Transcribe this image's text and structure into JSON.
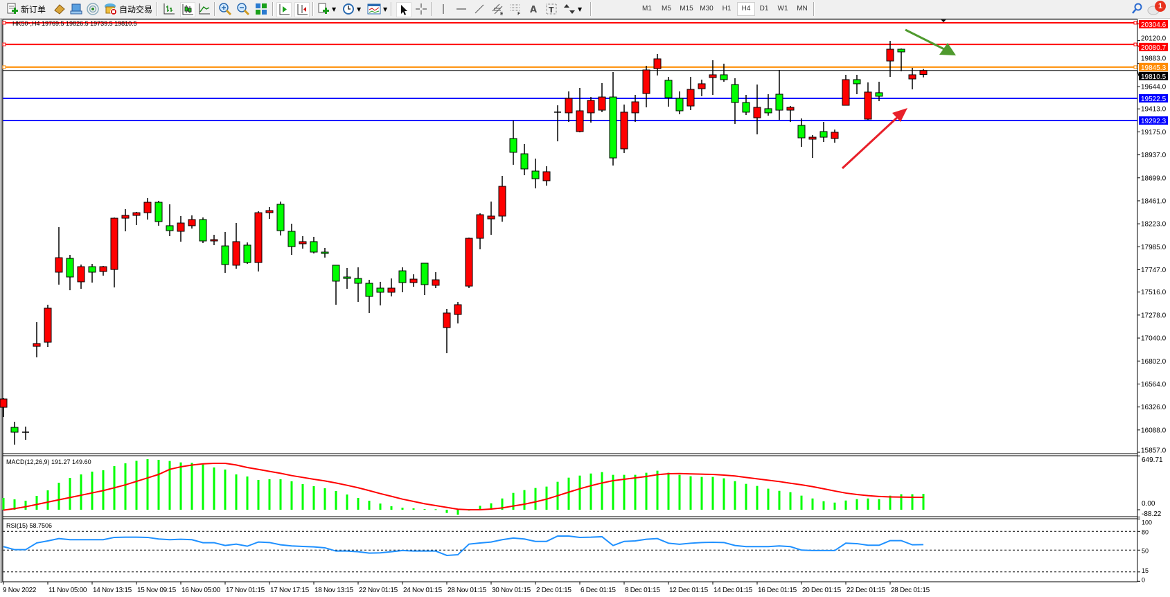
{
  "toolbar": {
    "new_order_label": "新订单",
    "auto_trading_label": "自动交易",
    "timeframes": [
      "M1",
      "M5",
      "M15",
      "M30",
      "H1",
      "H4",
      "D1",
      "W1",
      "MN"
    ],
    "active_timeframe": "H4",
    "notification_count": "1",
    "icons": [
      "new-order-icon",
      "market-watch-icon",
      "data-window-icon",
      "navigator-icon",
      "auto-trading-icon",
      "bar-chart-icon",
      "candlestick-icon",
      "line-chart-icon",
      "zoom-in-icon",
      "zoom-out-icon",
      "tile-windows-icon",
      "auto-scroll-icon",
      "chart-shift-icon",
      "indicators-icon",
      "periods-icon",
      "templates-icon",
      "cursor-icon",
      "crosshair-icon",
      "vertical-line-icon",
      "horizontal-line-icon",
      "trendline-icon",
      "equidistant-channel-icon",
      "fibonacci-icon",
      "text-icon",
      "text-label-icon",
      "arrows-icon",
      "search-icon",
      "notifications-icon"
    ]
  },
  "chart": {
    "symbol_info": "HK50-,H4  19769.5 19826.5 19739.5 19810.5",
    "up_color": "#ff0000",
    "down_color": "#00ff00",
    "current_price": "19810.5",
    "price_ticks": [
      "20120.0",
      "19883.0",
      "19644.0",
      "19413.0",
      "19175.0",
      "18937.0",
      "18699.0",
      "18461.0",
      "18223.0",
      "17985.0",
      "17747.0",
      "17516.0",
      "17278.0",
      "17040.0",
      "16802.0",
      "16564.0",
      "16326.0",
      "16088.0",
      "15857.0"
    ],
    "levels": [
      {
        "price": "20304.6",
        "color": "#ff0000"
      },
      {
        "price": "20080.7",
        "color": "#ff0000"
      },
      {
        "price": "19845.3",
        "color": "#ff8c00"
      },
      {
        "price": "19522.5",
        "color": "#0000ff"
      },
      {
        "price": "19292.3",
        "color": "#0000ff"
      }
    ],
    "annotations": [
      {
        "type": "arrow",
        "color": "#4f9a2e",
        "direction": "down-right"
      },
      {
        "type": "arrow",
        "color": "#e8202a",
        "direction": "up-right"
      }
    ],
    "time_labels": [
      "9 Nov 2022",
      "11 Nov 05:00",
      "14 Nov 13:15",
      "15 Nov 09:15",
      "16 Nov 05:00",
      "17 Nov 01:15",
      "17 Nov 17:15",
      "18 Nov 13:15",
      "22 Nov 01:15",
      "24 Nov 01:15",
      "28 Nov 01:15",
      "30 Nov 01:15",
      "2 Dec 01:15",
      "6 Dec 01:15",
      "8 Dec 01:15",
      "12 Dec 01:15",
      "14 Dec 01:15",
      "16 Dec 01:15",
      "20 Dec 01:15",
      "22 Dec 01:15",
      "28 Dec 01:15"
    ],
    "macd": {
      "label": "MACD(12,26,9) 191.27 149.60",
      "max_label": "649.71",
      "zero_label": "0.00",
      "min_label": "-88.22",
      "hist_color": "#00ff00",
      "signal_color": "#ff0000"
    },
    "rsi": {
      "label": "RSI(15) 58.7506",
      "levels": [
        "100",
        "80",
        "50",
        "15",
        "0"
      ],
      "color": "#1e90ff"
    }
  },
  "chart_data": {
    "type": "candlestick",
    "symbol": "HK50-",
    "timeframe": "H4",
    "ylim": [
      15843,
      20340
    ],
    "ohlc": [
      [
        16323,
        16417,
        16223,
        16409
      ],
      [
        16115,
        16173,
        15936,
        16065
      ],
      [
        16065,
        16123,
        15986,
        16068
      ],
      [
        16954,
        17205,
        16840,
        16983
      ],
      [
        16997,
        17385,
        16947,
        17349
      ],
      [
        17722,
        18188,
        17593,
        17872
      ],
      [
        17865,
        17901,
        17535,
        17672
      ],
      [
        17622,
        17801,
        17550,
        17779
      ],
      [
        17779,
        17808,
        17614,
        17722
      ],
      [
        17729,
        17786,
        17686,
        17779
      ],
      [
        17750,
        18288,
        17564,
        18281
      ],
      [
        18281,
        18375,
        18145,
        18310
      ],
      [
        18310,
        18346,
        18210,
        18338
      ],
      [
        18338,
        18489,
        18267,
        18446
      ],
      [
        18446,
        18461,
        18203,
        18246
      ],
      [
        18203,
        18425,
        18095,
        18152
      ],
      [
        18145,
        18303,
        18038,
        18231
      ],
      [
        18203,
        18310,
        18174,
        18267
      ],
      [
        18267,
        18289,
        18023,
        18045
      ],
      [
        18045,
        18109,
        18002,
        18059
      ],
      [
        17994,
        18138,
        17715,
        17801
      ],
      [
        17794,
        18231,
        17758,
        18038
      ],
      [
        18002,
        18030,
        17808,
        17822
      ],
      [
        17822,
        18353,
        17729,
        18338
      ],
      [
        18338,
        18396,
        18274,
        18360
      ],
      [
        18425,
        18453,
        18102,
        18152
      ],
      [
        18145,
        18224,
        17901,
        17987
      ],
      [
        18016,
        18095,
        17966,
        18038
      ],
      [
        18038,
        18088,
        17916,
        17930
      ],
      [
        17930,
        17973,
        17873,
        17916
      ],
      [
        17794,
        17794,
        17385,
        17629
      ],
      [
        17672,
        17765,
        17550,
        17657
      ],
      [
        17657,
        17772,
        17414,
        17607
      ],
      [
        17607,
        17643,
        17299,
        17471
      ],
      [
        17557,
        17622,
        17378,
        17514
      ],
      [
        17514,
        17657,
        17471,
        17557
      ],
      [
        17736,
        17772,
        17514,
        17614
      ],
      [
        17614,
        17700,
        17571,
        17650
      ],
      [
        17815,
        17815,
        17485,
        17593
      ],
      [
        17586,
        17722,
        17557,
        17643
      ],
      [
        17148,
        17342,
        16883,
        17299
      ],
      [
        17284,
        17413,
        17191,
        17385
      ],
      [
        17578,
        18080,
        17557,
        18073
      ],
      [
        18073,
        18332,
        17959,
        18317
      ],
      [
        18274,
        18453,
        18109,
        18303
      ],
      [
        18303,
        18719,
        18245,
        18611
      ],
      [
        19106,
        19293,
        18834,
        18963
      ],
      [
        18948,
        19049,
        18726,
        18791
      ],
      [
        18769,
        18898,
        18590,
        18690
      ],
      [
        18669,
        18819,
        18618,
        18762
      ],
      [
        19379,
        19450,
        19077,
        19386
      ],
      [
        19372,
        19594,
        19278,
        19522
      ],
      [
        19178,
        19630,
        19170,
        19393
      ],
      [
        19372,
        19536,
        19271,
        19501
      ],
      [
        19400,
        19680,
        19379,
        19536
      ],
      [
        19536,
        19795,
        18826,
        18905
      ],
      [
        18999,
        19458,
        18956,
        19379
      ],
      [
        19372,
        19558,
        19278,
        19486
      ],
      [
        19572,
        19859,
        19429,
        19816
      ],
      [
        19830,
        19981,
        19759,
        19931
      ],
      [
        19709,
        19744,
        19436,
        19529
      ],
      [
        19522,
        19594,
        19357,
        19393
      ],
      [
        19443,
        19744,
        19400,
        19615
      ],
      [
        19622,
        19716,
        19544,
        19673
      ],
      [
        19737,
        19917,
        19558,
        19766
      ],
      [
        19766,
        19881,
        19694,
        19716
      ],
      [
        19665,
        19730,
        19257,
        19479
      ],
      [
        19479,
        19558,
        19350,
        19379
      ],
      [
        19321,
        19665,
        19149,
        19429
      ],
      [
        19415,
        19565,
        19343,
        19372
      ],
      [
        19565,
        19816,
        19300,
        19400
      ],
      [
        19400,
        19443,
        19278,
        19429
      ],
      [
        19242,
        19314,
        19020,
        19113
      ],
      [
        19099,
        19142,
        18905,
        19120
      ],
      [
        19178,
        19278,
        19070,
        19120
      ],
      [
        19106,
        19199,
        19063,
        19171
      ],
      [
        19450,
        19766,
        19450,
        19716
      ],
      [
        19716,
        19766,
        19565,
        19673
      ],
      [
        19307,
        19687,
        19300,
        19587
      ],
      [
        19580,
        19694,
        19493,
        19544
      ],
      [
        19909,
        20117,
        19744,
        20031
      ],
      [
        20031,
        20038,
        19802,
        20003
      ],
      [
        19723,
        19838,
        19615,
        19766
      ],
      [
        19769.5,
        19826.5,
        19739.5,
        19810.5
      ]
    ],
    "macd": {
      "ylim": [
        -88.22,
        649.71
      ],
      "main": [
        142,
        125,
        109,
        167,
        234,
        326,
        384,
        426,
        460,
        476,
        526,
        560,
        590,
        610,
        602,
        588,
        571,
        566,
        546,
        510,
        485,
        426,
        401,
        359,
        368,
        368,
        343,
        309,
        284,
        259,
        226,
        184,
        142,
        109,
        75,
        42,
        25,
        17,
        8,
        6,
        -39,
        -61,
        -11,
        48,
        78,
        136,
        203,
        237,
        262,
        279,
        337,
        387,
        412,
        437,
        454,
        421,
        421,
        421,
        446,
        471,
        446,
        421,
        404,
        396,
        396,
        379,
        345,
        312,
        287,
        254,
        228,
        212,
        170,
        136,
        103,
        86,
        111,
        128,
        136,
        128,
        170,
        187,
        187,
        191.27
      ],
      "signal": [
        -5,
        14,
        36,
        64,
        92,
        120,
        147,
        175,
        203,
        231,
        265,
        300,
        342,
        384,
        426,
        487,
        518,
        539,
        554,
        560,
        560,
        540,
        510,
        487,
        463,
        440,
        412,
        390,
        368,
        348,
        323,
        295,
        265,
        231,
        195,
        162,
        128,
        100,
        72,
        50,
        28,
        6,
        0,
        0,
        8,
        22,
        45,
        67,
        95,
        128,
        170,
        212,
        253,
        290,
        323,
        351,
        368,
        384,
        401,
        423,
        434,
        437,
        432,
        429,
        426,
        418,
        407,
        390,
        373,
        356,
        340,
        320,
        301,
        279,
        253,
        226,
        201,
        184,
        170,
        160,
        155,
        152,
        150,
        149.6
      ]
    },
    "rsi": {
      "ylim": [
        0,
        100
      ],
      "values": [
        55.6,
        50.7,
        50.7,
        61.5,
        64.8,
        68.5,
        66.7,
        66.7,
        66.7,
        66.7,
        70.4,
        70.7,
        70.7,
        70.4,
        67.8,
        66.7,
        67.4,
        66.7,
        61.9,
        61.9,
        57.4,
        59.6,
        56.3,
        63,
        62.2,
        58.5,
        56.7,
        55.9,
        55.2,
        53.7,
        48.5,
        48.5,
        47.4,
        45.2,
        45.6,
        47.4,
        49.3,
        48.5,
        48.5,
        48.5,
        41.5,
        42.6,
        59.6,
        61.5,
        63,
        66.7,
        69.3,
        67.8,
        64,
        64,
        72.6,
        72.6,
        70.4,
        70.7,
        71.5,
        57.4,
        64,
        64.8,
        67.4,
        68.5,
        61.1,
        59.3,
        61.1,
        62.2,
        62.6,
        62.2,
        57.4,
        55.6,
        55.6,
        55.6,
        56.7,
        55.6,
        50,
        49.3,
        49.3,
        49.3,
        61.1,
        60.4,
        57.8,
        57.8,
        65.2,
        65.2,
        58.5,
        58.7506
      ]
    }
  }
}
